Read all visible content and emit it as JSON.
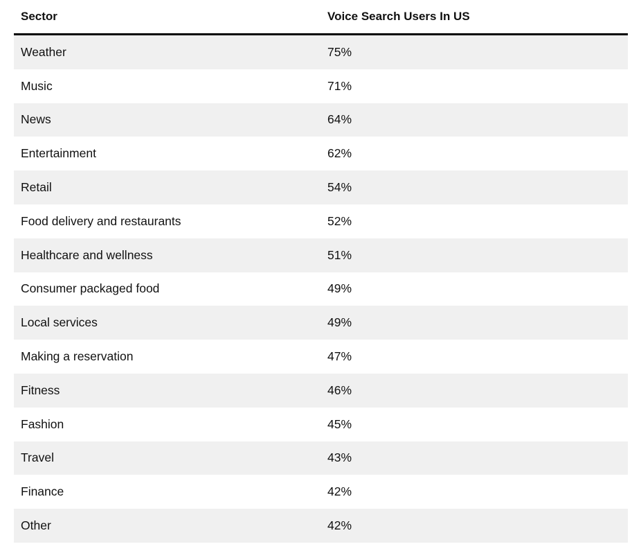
{
  "table": {
    "headers": [
      "Sector",
      "Voice Search Users In US"
    ],
    "rows": [
      {
        "sector": "Weather",
        "value": "75%"
      },
      {
        "sector": "Music",
        "value": "71%"
      },
      {
        "sector": "News",
        "value": "64%"
      },
      {
        "sector": "Entertainment",
        "value": "62%"
      },
      {
        "sector": "Retail",
        "value": "54%"
      },
      {
        "sector": "Food delivery and restaurants",
        "value": "52%"
      },
      {
        "sector": "Healthcare and wellness",
        "value": "51%"
      },
      {
        "sector": "Consumer packaged food",
        "value": "49%"
      },
      {
        "sector": "Local services",
        "value": "49%"
      },
      {
        "sector": "Making a reservation",
        "value": "47%"
      },
      {
        "sector": "Fitness",
        "value": "46%"
      },
      {
        "sector": "Fashion",
        "value": "45%"
      },
      {
        "sector": "Travel",
        "value": "43%"
      },
      {
        "sector": "Finance",
        "value": "42%"
      },
      {
        "sector": "Other",
        "value": "42%"
      }
    ]
  },
  "colors": {
    "stripe": "#f0f0f0",
    "header_rule": "#000000",
    "text": "#111111"
  }
}
